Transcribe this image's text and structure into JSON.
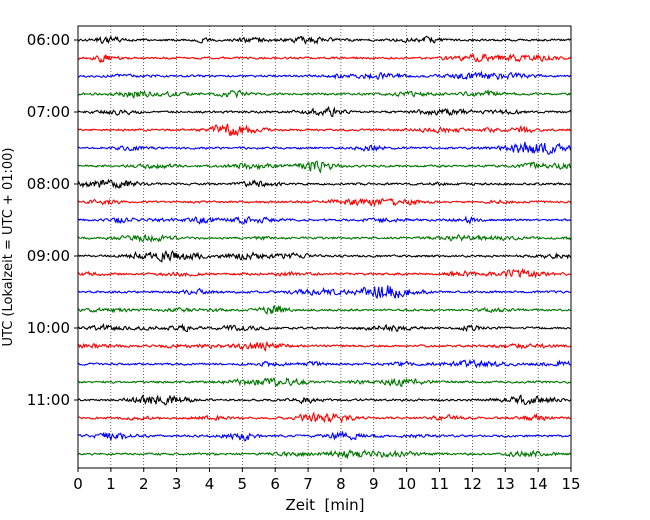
{
  "chart_data": {
    "type": "line",
    "title": "",
    "xlabel": "Zeit  [min]",
    "ylabel": "UTC (Lokalzeit = UTC + 01:00)",
    "xlim": [
      0,
      15
    ],
    "x_ticks": [
      "0",
      "1",
      "2",
      "3",
      "4",
      "5",
      "6",
      "7",
      "8",
      "9",
      "10",
      "11",
      "12",
      "13",
      "14",
      "15"
    ],
    "y_tick_labels": [
      "06:00",
      "07:00",
      "08:00",
      "09:00",
      "10:00",
      "11:00"
    ],
    "grid": "vertical dotted lines at each minute",
    "legend": "none",
    "trace_minutes": 15,
    "traces": [
      {
        "start": "06:00",
        "color": "#000000"
      },
      {
        "start": "06:15",
        "color": "#ff0000"
      },
      {
        "start": "06:30",
        "color": "#0000ff"
      },
      {
        "start": "06:45",
        "color": "#007700"
      },
      {
        "start": "07:00",
        "color": "#000000"
      },
      {
        "start": "07:15",
        "color": "#ff0000"
      },
      {
        "start": "07:30",
        "color": "#0000ff"
      },
      {
        "start": "07:45",
        "color": "#007700"
      },
      {
        "start": "08:00",
        "color": "#000000"
      },
      {
        "start": "08:15",
        "color": "#ff0000"
      },
      {
        "start": "08:30",
        "color": "#0000ff"
      },
      {
        "start": "08:45",
        "color": "#007700"
      },
      {
        "start": "09:00",
        "color": "#000000"
      },
      {
        "start": "09:15",
        "color": "#ff0000"
      },
      {
        "start": "09:30",
        "color": "#0000ff"
      },
      {
        "start": "09:45",
        "color": "#007700"
      },
      {
        "start": "10:00",
        "color": "#000000"
      },
      {
        "start": "10:15",
        "color": "#ff0000"
      },
      {
        "start": "10:30",
        "color": "#0000ff"
      },
      {
        "start": "10:45",
        "color": "#007700"
      },
      {
        "start": "11:00",
        "color": "#000000"
      },
      {
        "start": "11:15",
        "color": "#ff0000"
      },
      {
        "start": "11:30",
        "color": "#0000ff"
      },
      {
        "start": "11:45",
        "color": "#007700"
      }
    ]
  }
}
